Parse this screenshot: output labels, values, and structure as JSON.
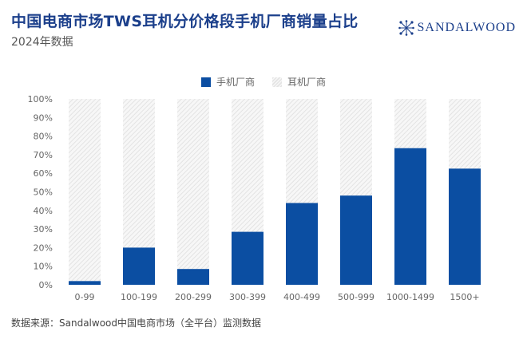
{
  "title": "中国电商市场TWS耳机分价格段手机厂商销量占比",
  "subtitle": "2024年数据",
  "brand": "SANDALWOOD",
  "source": "数据来源：Sandalwood中国电商市场（全平台）监测数据",
  "colors": {
    "phone": "#0b4ea2",
    "earphone_hatch": "#e3e3e3",
    "title": "#1b3f8b"
  },
  "chart_data": {
    "type": "bar",
    "stacked": true,
    "categories": [
      "0-99",
      "100-199",
      "200-299",
      "300-399",
      "400-499",
      "500-999",
      "1000-1499",
      "1500+"
    ],
    "series": [
      {
        "name": "手机厂商",
        "values": [
          2,
          20,
          8.5,
          28.5,
          44,
          48,
          73.5,
          62.5
        ]
      },
      {
        "name": "耳机厂商",
        "values": [
          98,
          80,
          91.5,
          71.5,
          56,
          52,
          26.5,
          37.5
        ]
      }
    ],
    "y_ticks": [
      "0%",
      "10%",
      "20%",
      "30%",
      "40%",
      "50%",
      "60%",
      "70%",
      "80%",
      "90%",
      "100%"
    ],
    "ylim": [
      0,
      100
    ],
    "legend_position": "top-center",
    "grid": false
  }
}
